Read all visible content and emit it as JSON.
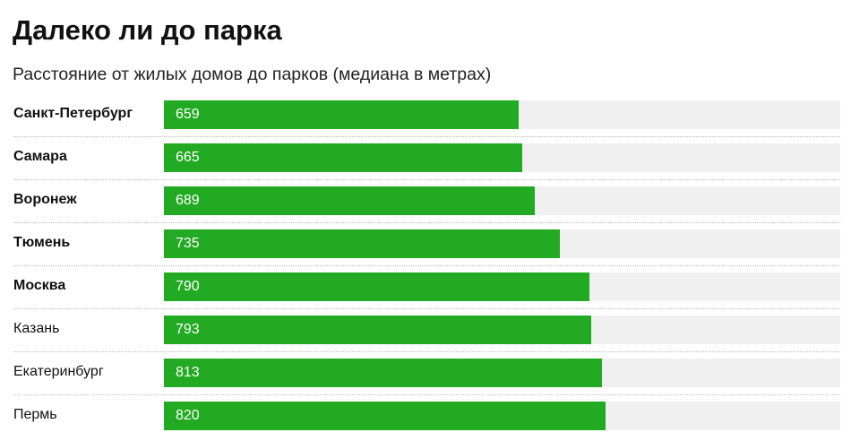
{
  "chart_data": {
    "type": "bar",
    "orientation": "horizontal",
    "title": "Далеко ли до парка",
    "subtitle": "Расстояние от жилых домов до парков (медиана в метрах)",
    "categories": [
      "Санкт-Петербург",
      "Самара",
      "Воронеж",
      "Тюмень",
      "Москва",
      "Казань",
      "Екатеринбург",
      "Пермь"
    ],
    "bold_categories": [
      true,
      true,
      true,
      true,
      true,
      false,
      false,
      false
    ],
    "values": [
      659,
      665,
      689,
      735,
      790,
      793,
      813,
      820
    ],
    "xlim": [
      0,
      1256
    ],
    "grid": false,
    "legend": false,
    "bar_color": "#22aa22",
    "track_color": "#f0f0f0",
    "value_label_color": "#ffffff"
  }
}
